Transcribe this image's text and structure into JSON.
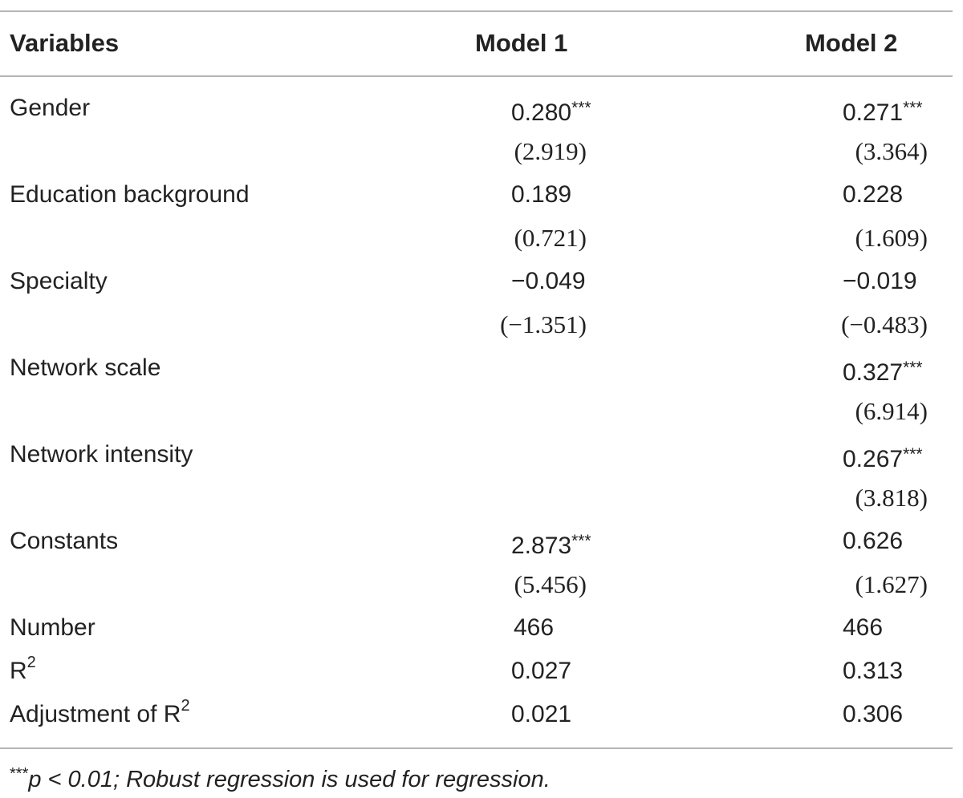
{
  "table": {
    "headers": {
      "variables": "Variables",
      "model1": "Model 1",
      "model2": "Model 2"
    },
    "rows": [
      {
        "variable": "Gender",
        "model1": "0.280",
        "model1_sig": "***",
        "model2": "0.271",
        "model2_sig": "***"
      },
      {
        "variable": "",
        "model1": "(2.919)",
        "model1_sig": "",
        "model2": "(3.364)",
        "model2_sig": ""
      },
      {
        "variable": "Education background",
        "model1": "0.189",
        "model1_sig": "",
        "model2": "0.228",
        "model2_sig": ""
      },
      {
        "variable": "",
        "model1": "(0.721)",
        "model1_sig": "",
        "model2": "(1.609)",
        "model2_sig": ""
      },
      {
        "variable": "Specialty",
        "model1": "−0.049",
        "model1_sig": "",
        "model2": "−0.019",
        "model2_sig": ""
      },
      {
        "variable": "",
        "model1": "(−1.351)",
        "model1_sig": "",
        "model2": "(−0.483)",
        "model2_sig": ""
      },
      {
        "variable": "Network scale",
        "model1": "",
        "model1_sig": "",
        "model2": "0.327",
        "model2_sig": "***"
      },
      {
        "variable": "",
        "model1": "",
        "model1_sig": "",
        "model2": "(6.914)",
        "model2_sig": ""
      },
      {
        "variable": "Network intensity",
        "model1": "",
        "model1_sig": "",
        "model2": "0.267",
        "model2_sig": "***"
      },
      {
        "variable": "",
        "model1": "",
        "model1_sig": "",
        "model2": "(3.818)",
        "model2_sig": ""
      },
      {
        "variable": "Constants",
        "model1": "2.873",
        "model1_sig": "***",
        "model2": "0.626",
        "model2_sig": ""
      },
      {
        "variable": "",
        "model1": "(5.456)",
        "model1_sig": "",
        "model2": "(1.627)",
        "model2_sig": ""
      },
      {
        "variable": "Number",
        "model1": "466",
        "model1_sig": "",
        "model2": "466",
        "model2_sig": ""
      },
      {
        "variable": "R",
        "variable_sup": "2",
        "model1": "0.027",
        "model1_sig": "",
        "model2": "0.313",
        "model2_sig": ""
      },
      {
        "variable": "Adjustment of R",
        "variable_sup": "2",
        "model1": "0.021",
        "model1_sig": "",
        "model2": "0.306",
        "model2_sig": ""
      }
    ],
    "note": {
      "stars": "***",
      "text": "p < 0.01; Robust regression is used for regression."
    }
  }
}
